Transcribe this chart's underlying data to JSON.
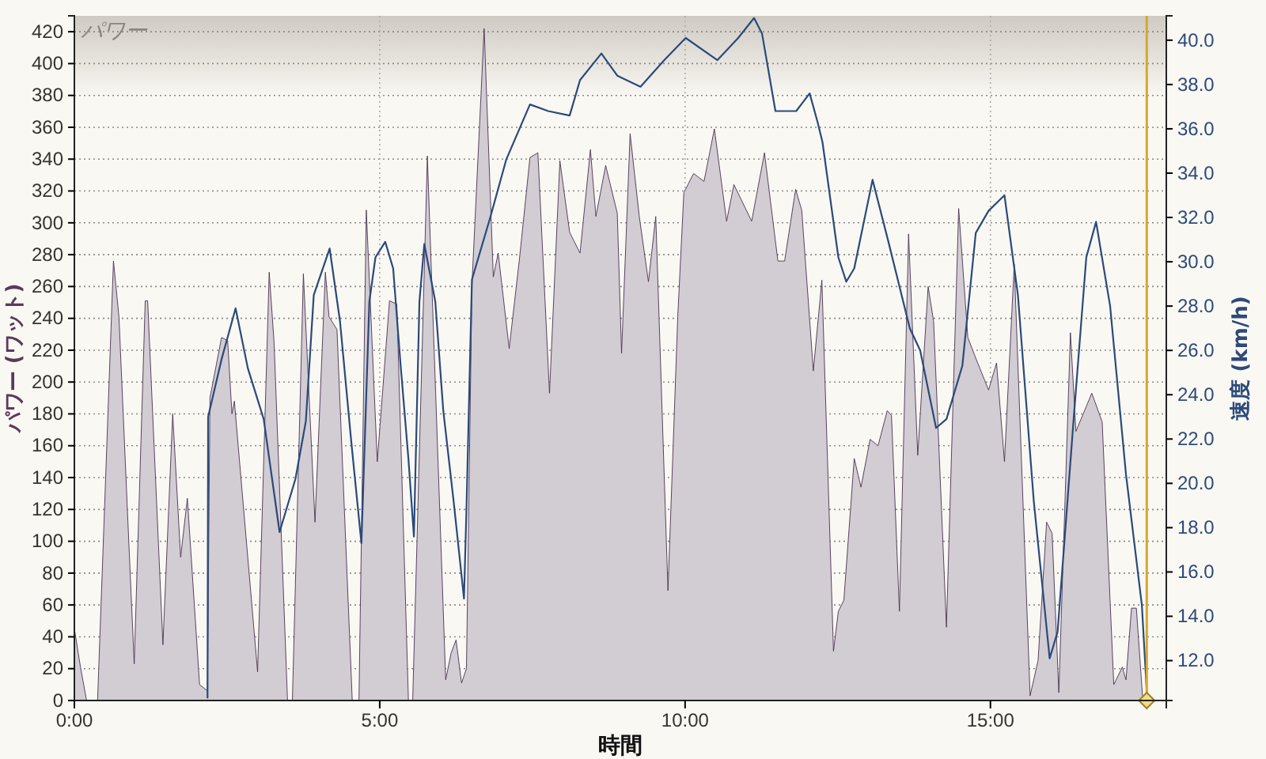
{
  "chart_data": {
    "type": "area",
    "title": "パワー",
    "xlabel": "時間",
    "ylabel": "パワー (ワット)",
    "y2label": "速度 (km/h)",
    "xlim": [
      0,
      17.88
    ],
    "xticks": [
      {
        "value": 0,
        "label": "0:00"
      },
      {
        "value": 5,
        "label": "5:00"
      },
      {
        "value": 10,
        "label": "10:00"
      },
      {
        "value": 15,
        "label": "15:00"
      }
    ],
    "ylim": [
      0,
      430
    ],
    "yticks": [
      0,
      20,
      40,
      60,
      80,
      100,
      120,
      140,
      160,
      180,
      200,
      220,
      240,
      260,
      280,
      300,
      320,
      340,
      360,
      380,
      400,
      420
    ],
    "y2lim": [
      10.2,
      41.1
    ],
    "y2ticks": [
      {
        "value": 12,
        "label": "12.0"
      },
      {
        "value": 14,
        "label": "14.0"
      },
      {
        "value": 16,
        "label": "16.0"
      },
      {
        "value": 18,
        "label": "18.0"
      },
      {
        "value": 20,
        "label": "20.0"
      },
      {
        "value": 22,
        "label": "22.0"
      },
      {
        "value": 24,
        "label": "24.0"
      },
      {
        "value": 26,
        "label": "26.0"
      },
      {
        "value": 28,
        "label": "28.0"
      },
      {
        "value": 30,
        "label": "30.0"
      },
      {
        "value": 32,
        "label": "32.0"
      },
      {
        "value": 34,
        "label": "34.0"
      },
      {
        "value": 36,
        "label": "36.0"
      },
      {
        "value": 38,
        "label": "38.0"
      },
      {
        "value": 40,
        "label": "40.0"
      }
    ],
    "grid": true,
    "ref_lines": [
      {
        "axis": "x",
        "value": 17.56,
        "color": "#d4a830"
      }
    ],
    "series": [
      {
        "color": "#4a3150",
        "x": [
          0,
          0.1,
          0.2,
          0.38,
          0.64,
          0.73,
          0.9,
          0.98,
          1.16,
          1.2,
          1.45,
          1.61,
          1.74,
          1.85,
          2.05,
          2.18,
          2.22,
          2.41,
          2.51,
          2.58,
          2.62,
          3.0,
          3.19,
          3.27,
          3.49,
          3.57,
          3.75,
          3.94,
          4.11,
          4.17,
          4.3,
          4.55,
          4.66,
          4.78,
          4.96,
          5.16,
          5.28,
          5.47,
          5.54,
          5.78,
          6.08,
          6.17,
          6.25,
          6.34,
          6.42,
          6.51,
          6.71,
          6.86,
          6.94,
          7.12,
          7.29,
          7.46,
          7.59,
          7.78,
          7.95,
          8.11,
          8.28,
          8.45,
          8.54,
          8.7,
          8.89,
          8.96,
          9.1,
          9.25,
          9.4,
          9.52,
          9.72,
          9.88,
          9.98,
          10.14,
          10.31,
          10.48,
          10.68,
          10.8,
          11.09,
          11.3,
          11.52,
          11.63,
          11.81,
          11.91,
          12.1,
          12.24,
          12.43,
          12.51,
          12.6,
          12.77,
          12.88,
          13.03,
          13.16,
          13.31,
          13.38,
          13.51,
          13.66,
          13.81,
          13.98,
          14.07,
          14.28,
          14.48,
          14.63,
          14.76,
          14.97,
          15.1,
          15.23,
          15.39,
          15.65,
          15.78,
          15.92,
          16.01,
          16.12,
          16.31,
          16.4,
          16.66,
          16.83,
          17.02,
          17.16,
          17.22,
          17.31,
          17.39,
          17.49,
          17.56
        ],
        "values": [
          45,
          21,
          0,
          0,
          276,
          241,
          92,
          23,
          251,
          251,
          35,
          180,
          90,
          127,
          10,
          6,
          190,
          228,
          226,
          180,
          188,
          18,
          269,
          225,
          0,
          0,
          268,
          112,
          269,
          241,
          233,
          0,
          0,
          308,
          150,
          251,
          249,
          0,
          0,
          342,
          13,
          30,
          38,
          11,
          20,
          261,
          422,
          266,
          281,
          221,
          278,
          341,
          344,
          193,
          339,
          294,
          281,
          346,
          304,
          336,
          306,
          218,
          356,
          304,
          263,
          304,
          69,
          241,
          319,
          331,
          326,
          359,
          301,
          324,
          301,
          344,
          276,
          276,
          321,
          308,
          207,
          264,
          31,
          56,
          63,
          152,
          134,
          164,
          160,
          182,
          179,
          56,
          293,
          154,
          260,
          238,
          46,
          309,
          228,
          215,
          195,
          212,
          150,
          274,
          3,
          25,
          112,
          105,
          5,
          231,
          169,
          193,
          175,
          10,
          21,
          13,
          58,
          58,
          3,
          0
        ]
      },
      {
        "type": "line",
        "axis": "y2",
        "color": "#2a4a7a",
        "x": [
          2.18,
          2.19,
          2.41,
          2.64,
          2.84,
          3.1,
          3.36,
          3.62,
          3.79,
          3.92,
          4.18,
          4.35,
          4.53,
          4.7,
          4.83,
          4.93,
          5.09,
          5.22,
          5.34,
          5.47,
          5.56,
          5.65,
          5.73,
          5.91,
          6.04,
          6.21,
          6.38,
          6.42,
          6.51,
          6.81,
          7.07,
          7.46,
          7.76,
          8.11,
          8.28,
          8.63,
          8.89,
          9.27,
          9.66,
          10.01,
          10.53,
          10.87,
          11.13,
          11.26,
          11.48,
          11.82,
          12.04,
          12.17,
          12.25,
          12.51,
          12.64,
          12.77,
          13.07,
          13.33,
          13.68,
          13.85,
          14.11,
          14.28,
          14.54,
          14.76,
          14.97,
          15.23,
          15.45,
          15.71,
          15.97,
          16.1,
          16.36,
          16.57,
          16.73,
          16.96,
          17.22,
          17.48,
          17.56
        ],
        "values": [
          10.3,
          23.0,
          25.6,
          27.9,
          25.2,
          22.9,
          17.8,
          20.2,
          22.8,
          28.5,
          30.6,
          27.3,
          22.0,
          17.3,
          28.2,
          30.2,
          30.9,
          29.7,
          25.4,
          21.1,
          17.6,
          28.2,
          30.8,
          28.2,
          23.3,
          19.2,
          14.8,
          18.8,
          29.2,
          32.0,
          34.6,
          37.1,
          36.8,
          36.6,
          38.2,
          39.4,
          38.4,
          37.9,
          39.1,
          40.1,
          39.1,
          40.1,
          41.0,
          40.3,
          36.8,
          36.8,
          37.6,
          36.3,
          35.4,
          30.2,
          29.1,
          29.7,
          33.7,
          30.9,
          27.0,
          26.0,
          22.5,
          22.9,
          25.3,
          31.3,
          32.3,
          33.0,
          28.5,
          19.2,
          12.1,
          13.3,
          22.8,
          30.2,
          31.8,
          28.0,
          20.4,
          14.5,
          10.6
        ]
      }
    ]
  }
}
